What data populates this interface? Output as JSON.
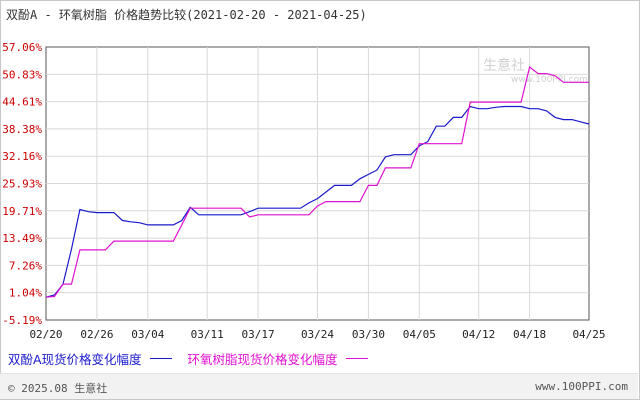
{
  "title": {
    "name": "双酚A - 环氧树脂 价格趋势比较",
    "range": "(2021-02-20 - 2021-04-25)"
  },
  "watermark": {
    "text": "生意社",
    "url": "www.100PPI.com"
  },
  "footer": {
    "copyright": "© 2025.08 生意社",
    "url": "www.100PPI.com"
  },
  "colors": {
    "series1": "#1a1acc",
    "series2": "#e010d0",
    "ytick": "#cc0000",
    "grid": "#d8d8d8"
  },
  "chart_data": {
    "type": "line",
    "x_labels": [
      "02/20",
      "02/26",
      "03/04",
      "03/11",
      "03/17",
      "03/24",
      "03/30",
      "04/05",
      "04/12",
      "04/18",
      "04/25"
    ],
    "y_ticks": [
      "57.06%",
      "50.83%",
      "44.61%",
      "38.38%",
      "32.16%",
      "25.93%",
      "19.71%",
      "13.49%",
      "7.26%",
      "1.04%",
      "-5.19%"
    ],
    "ylim": [
      -5.19,
      57.06
    ],
    "grid": true,
    "series": [
      {
        "name": "双酚A现货价格变化幅度",
        "color": "#1a1acc",
        "points": [
          [
            "02/20",
            0.0
          ],
          [
            "02/21",
            0.5
          ],
          [
            "02/22",
            3.0
          ],
          [
            "02/23",
            11.0
          ],
          [
            "02/24",
            20.0
          ],
          [
            "02/25",
            19.5
          ],
          [
            "02/26",
            19.3
          ],
          [
            "02/27",
            19.3
          ],
          [
            "02/28",
            19.3
          ],
          [
            "03/01",
            17.5
          ],
          [
            "03/02",
            17.2
          ],
          [
            "03/03",
            17.0
          ],
          [
            "03/04",
            16.5
          ],
          [
            "03/05",
            16.5
          ],
          [
            "03/06",
            16.5
          ],
          [
            "03/07",
            16.5
          ],
          [
            "03/08",
            17.5
          ],
          [
            "03/09",
            20.5
          ],
          [
            "03/10",
            18.8
          ],
          [
            "03/11",
            18.8
          ],
          [
            "03/12",
            18.8
          ],
          [
            "03/13",
            18.8
          ],
          [
            "03/14",
            18.8
          ],
          [
            "03/15",
            18.8
          ],
          [
            "03/16",
            19.5
          ],
          [
            "03/17",
            20.3
          ],
          [
            "03/18",
            20.3
          ],
          [
            "03/19",
            20.3
          ],
          [
            "03/20",
            20.3
          ],
          [
            "03/21",
            20.3
          ],
          [
            "03/22",
            20.3
          ],
          [
            "03/23",
            21.5
          ],
          [
            "03/24",
            22.5
          ],
          [
            "03/25",
            24.0
          ],
          [
            "03/26",
            25.5
          ],
          [
            "03/27",
            25.5
          ],
          [
            "03/28",
            25.5
          ],
          [
            "03/29",
            27.0
          ],
          [
            "03/30",
            28.0
          ],
          [
            "03/31",
            29.0
          ],
          [
            "04/01",
            32.0
          ],
          [
            "04/02",
            32.5
          ],
          [
            "04/03",
            32.5
          ],
          [
            "04/04",
            32.5
          ],
          [
            "04/05",
            34.5
          ],
          [
            "04/06",
            35.5
          ],
          [
            "04/07",
            39.0
          ],
          [
            "04/08",
            39.0
          ],
          [
            "04/09",
            41.0
          ],
          [
            "04/10",
            41.0
          ],
          [
            "04/11",
            43.5
          ],
          [
            "04/12",
            43.0
          ],
          [
            "04/13",
            43.0
          ],
          [
            "04/14",
            43.3
          ],
          [
            "04/15",
            43.5
          ],
          [
            "04/16",
            43.5
          ],
          [
            "04/17",
            43.5
          ],
          [
            "04/18",
            43.0
          ],
          [
            "04/19",
            43.0
          ],
          [
            "04/20",
            42.5
          ],
          [
            "04/21",
            41.0
          ],
          [
            "04/22",
            40.5
          ],
          [
            "04/23",
            40.5
          ],
          [
            "04/24",
            40.0
          ],
          [
            "04/25",
            39.5
          ]
        ]
      },
      {
        "name": "环氧树脂现货价格变化幅度",
        "color": "#e010d0",
        "points": [
          [
            "02/20",
            0.0
          ],
          [
            "02/21",
            0.2
          ],
          [
            "02/22",
            3.0
          ],
          [
            "02/23",
            3.0
          ],
          [
            "02/24",
            10.8
          ],
          [
            "02/25",
            10.8
          ],
          [
            "02/26",
            10.8
          ],
          [
            "02/27",
            10.8
          ],
          [
            "02/28",
            12.8
          ],
          [
            "03/01",
            12.8
          ],
          [
            "03/02",
            12.8
          ],
          [
            "03/03",
            12.8
          ],
          [
            "03/04",
            12.8
          ],
          [
            "03/05",
            12.8
          ],
          [
            "03/06",
            12.8
          ],
          [
            "03/07",
            12.8
          ],
          [
            "03/08",
            16.5
          ],
          [
            "03/09",
            20.3
          ],
          [
            "03/10",
            20.3
          ],
          [
            "03/11",
            20.3
          ],
          [
            "03/12",
            20.3
          ],
          [
            "03/13",
            20.3
          ],
          [
            "03/14",
            20.3
          ],
          [
            "03/15",
            20.3
          ],
          [
            "03/16",
            18.3
          ],
          [
            "03/17",
            18.8
          ],
          [
            "03/18",
            18.8
          ],
          [
            "03/19",
            18.8
          ],
          [
            "03/20",
            18.8
          ],
          [
            "03/21",
            18.8
          ],
          [
            "03/22",
            18.8
          ],
          [
            "03/23",
            18.8
          ],
          [
            "03/24",
            20.8
          ],
          [
            "03/25",
            21.8
          ],
          [
            "03/26",
            21.8
          ],
          [
            "03/27",
            21.8
          ],
          [
            "03/28",
            21.8
          ],
          [
            "03/29",
            21.8
          ],
          [
            "03/30",
            25.5
          ],
          [
            "03/31",
            25.5
          ],
          [
            "04/01",
            29.5
          ],
          [
            "04/02",
            29.5
          ],
          [
            "04/03",
            29.5
          ],
          [
            "04/04",
            29.5
          ],
          [
            "04/05",
            35.0
          ],
          [
            "04/06",
            35.0
          ],
          [
            "04/07",
            35.0
          ],
          [
            "04/08",
            35.0
          ],
          [
            "04/09",
            35.0
          ],
          [
            "04/10",
            35.0
          ],
          [
            "04/11",
            44.5
          ],
          [
            "04/12",
            44.5
          ],
          [
            "04/13",
            44.5
          ],
          [
            "04/14",
            44.5
          ],
          [
            "04/15",
            44.5
          ],
          [
            "04/16",
            44.5
          ],
          [
            "04/17",
            44.5
          ],
          [
            "04/18",
            52.5
          ],
          [
            "04/19",
            51.0
          ],
          [
            "04/20",
            51.0
          ],
          [
            "04/21",
            50.5
          ],
          [
            "04/22",
            49.0
          ],
          [
            "04/23",
            49.0
          ],
          [
            "04/24",
            49.0
          ],
          [
            "04/25",
            49.0
          ]
        ]
      }
    ]
  }
}
